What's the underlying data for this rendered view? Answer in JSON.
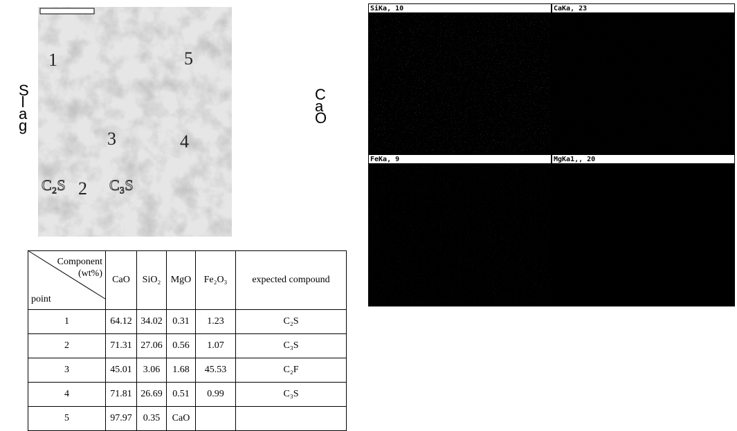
{
  "sem_image": {
    "side_left": "Slag",
    "side_right": "CaO",
    "points": [
      "1",
      "2",
      "3",
      "4",
      "5"
    ],
    "phases": [
      "C₂S",
      "C₃S"
    ]
  },
  "table": {
    "header": {
      "component": "Component",
      "unit": "(wt%)",
      "point": "point",
      "columns": [
        "CaO",
        "SiO₂",
        "MgO",
        "Fe₂O₃",
        "expected compound"
      ]
    },
    "rows": [
      [
        "1",
        "64.12",
        "34.02",
        "0.31",
        "1.23",
        "C₂S"
      ],
      [
        "2",
        "71.31",
        "27.06",
        "0.56",
        "1.07",
        "C₃S"
      ],
      [
        "3",
        "45.01",
        "3.06",
        "1.68",
        "45.53",
        "C₂F"
      ],
      [
        "4",
        "71.81",
        "26.69",
        "0.51",
        "0.99",
        "C₃S"
      ],
      [
        "5",
        "97.97",
        "0.35",
        "CaO"
      ]
    ]
  },
  "maps": [
    "SiKa, 10",
    "CaKa, 23",
    "FeKa, 9",
    "MgKa1,, 20"
  ]
}
